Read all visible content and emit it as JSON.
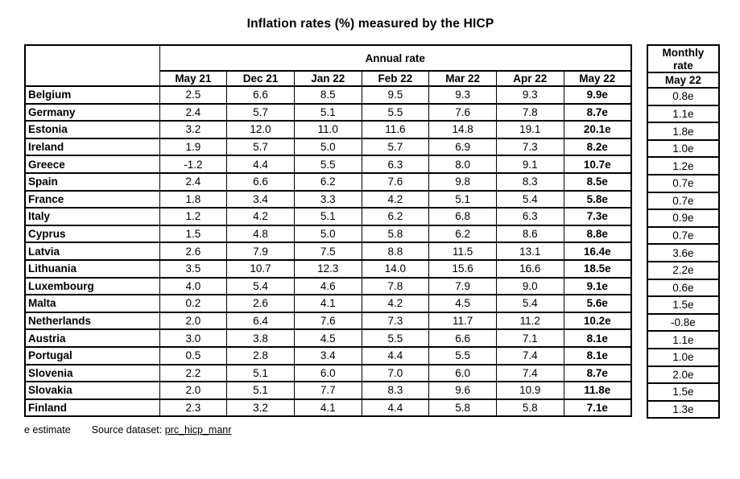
{
  "title": "Inflation rates (%) measured by the HICP",
  "annual_table": {
    "group_header": "Annual rate",
    "columns": [
      "May 21",
      "Dec 21",
      "Jan 22",
      "Feb 22",
      "Mar 22",
      "Apr 22",
      "May 22"
    ]
  },
  "monthly_table": {
    "group_header_line1": "Monthly",
    "group_header_line2": "rate",
    "column": "May 22"
  },
  "rows": [
    {
      "country": "Belgium",
      "annual": [
        "2.5",
        "6.6",
        "8.5",
        "9.5",
        "9.3",
        "9.3",
        "9.9e"
      ],
      "monthly": "0.8e"
    },
    {
      "country": "Germany",
      "annual": [
        "2.4",
        "5.7",
        "5.1",
        "5.5",
        "7.6",
        "7.8",
        "8.7e"
      ],
      "monthly": "1.1e"
    },
    {
      "country": "Estonia",
      "annual": [
        "3.2",
        "12.0",
        "11.0",
        "11.6",
        "14.8",
        "19.1",
        "20.1e"
      ],
      "monthly": "1.8e"
    },
    {
      "country": "Ireland",
      "annual": [
        "1.9",
        "5.7",
        "5.0",
        "5.7",
        "6.9",
        "7.3",
        "8.2e"
      ],
      "monthly": "1.0e"
    },
    {
      "country": "Greece",
      "annual": [
        "-1.2",
        "4.4",
        "5.5",
        "6.3",
        "8.0",
        "9.1",
        "10.7e"
      ],
      "monthly": "1.2e"
    },
    {
      "country": "Spain",
      "annual": [
        "2.4",
        "6.6",
        "6.2",
        "7.6",
        "9.8",
        "8.3",
        "8.5e"
      ],
      "monthly": "0.7e"
    },
    {
      "country": "France",
      "annual": [
        "1.8",
        "3.4",
        "3.3",
        "4.2",
        "5.1",
        "5.4",
        "5.8e"
      ],
      "monthly": "0.7e"
    },
    {
      "country": "Italy",
      "annual": [
        "1.2",
        "4.2",
        "5.1",
        "6.2",
        "6.8",
        "6.3",
        "7.3e"
      ],
      "monthly": "0.9e"
    },
    {
      "country": "Cyprus",
      "annual": [
        "1.5",
        "4.8",
        "5.0",
        "5.8",
        "6.2",
        "8.6",
        "8.8e"
      ],
      "monthly": "0.7e"
    },
    {
      "country": "Latvia",
      "annual": [
        "2.6",
        "7.9",
        "7.5",
        "8.8",
        "11.5",
        "13.1",
        "16.4e"
      ],
      "monthly": "3.6e"
    },
    {
      "country": "Lithuania",
      "annual": [
        "3.5",
        "10.7",
        "12.3",
        "14.0",
        "15.6",
        "16.6",
        "18.5e"
      ],
      "monthly": "2.2e"
    },
    {
      "country": "Luxembourg",
      "annual": [
        "4.0",
        "5.4",
        "4.6",
        "7.8",
        "7.9",
        "9.0",
        "9.1e"
      ],
      "monthly": "0.6e"
    },
    {
      "country": "Malta",
      "annual": [
        "0.2",
        "2.6",
        "4.1",
        "4.2",
        "4.5",
        "5.4",
        "5.6e"
      ],
      "monthly": "1.5e"
    },
    {
      "country": "Netherlands",
      "annual": [
        "2.0",
        "6.4",
        "7.6",
        "7.3",
        "11.7",
        "11.2",
        "10.2e"
      ],
      "monthly": "-0.8e"
    },
    {
      "country": "Austria",
      "annual": [
        "3.0",
        "3.8",
        "4.5",
        "5.5",
        "6.6",
        "7.1",
        "8.1e"
      ],
      "monthly": "1.1e"
    },
    {
      "country": "Portugal",
      "annual": [
        "0.5",
        "2.8",
        "3.4",
        "4.4",
        "5.5",
        "7.4",
        "8.1e"
      ],
      "monthly": "1.0e"
    },
    {
      "country": "Slovenia",
      "annual": [
        "2.2",
        "5.1",
        "6.0",
        "7.0",
        "6.0",
        "7.4",
        "8.7e"
      ],
      "monthly": "2.0e"
    },
    {
      "country": "Slovakia",
      "annual": [
        "2.0",
        "5.1",
        "7.7",
        "8.3",
        "9.6",
        "10.9",
        "11.8e"
      ],
      "monthly": "1.5e"
    },
    {
      "country": "Finland",
      "annual": [
        "2.3",
        "3.2",
        "4.1",
        "4.4",
        "5.8",
        "5.8",
        "7.1e"
      ],
      "monthly": "1.3e"
    }
  ],
  "footer": {
    "estimate_note": "e estimate",
    "source_label": "Source dataset:",
    "source_link": "prc_hicp_manr"
  },
  "colors": {
    "border": "#000000",
    "text": "#000000",
    "background": "#ffffff"
  }
}
